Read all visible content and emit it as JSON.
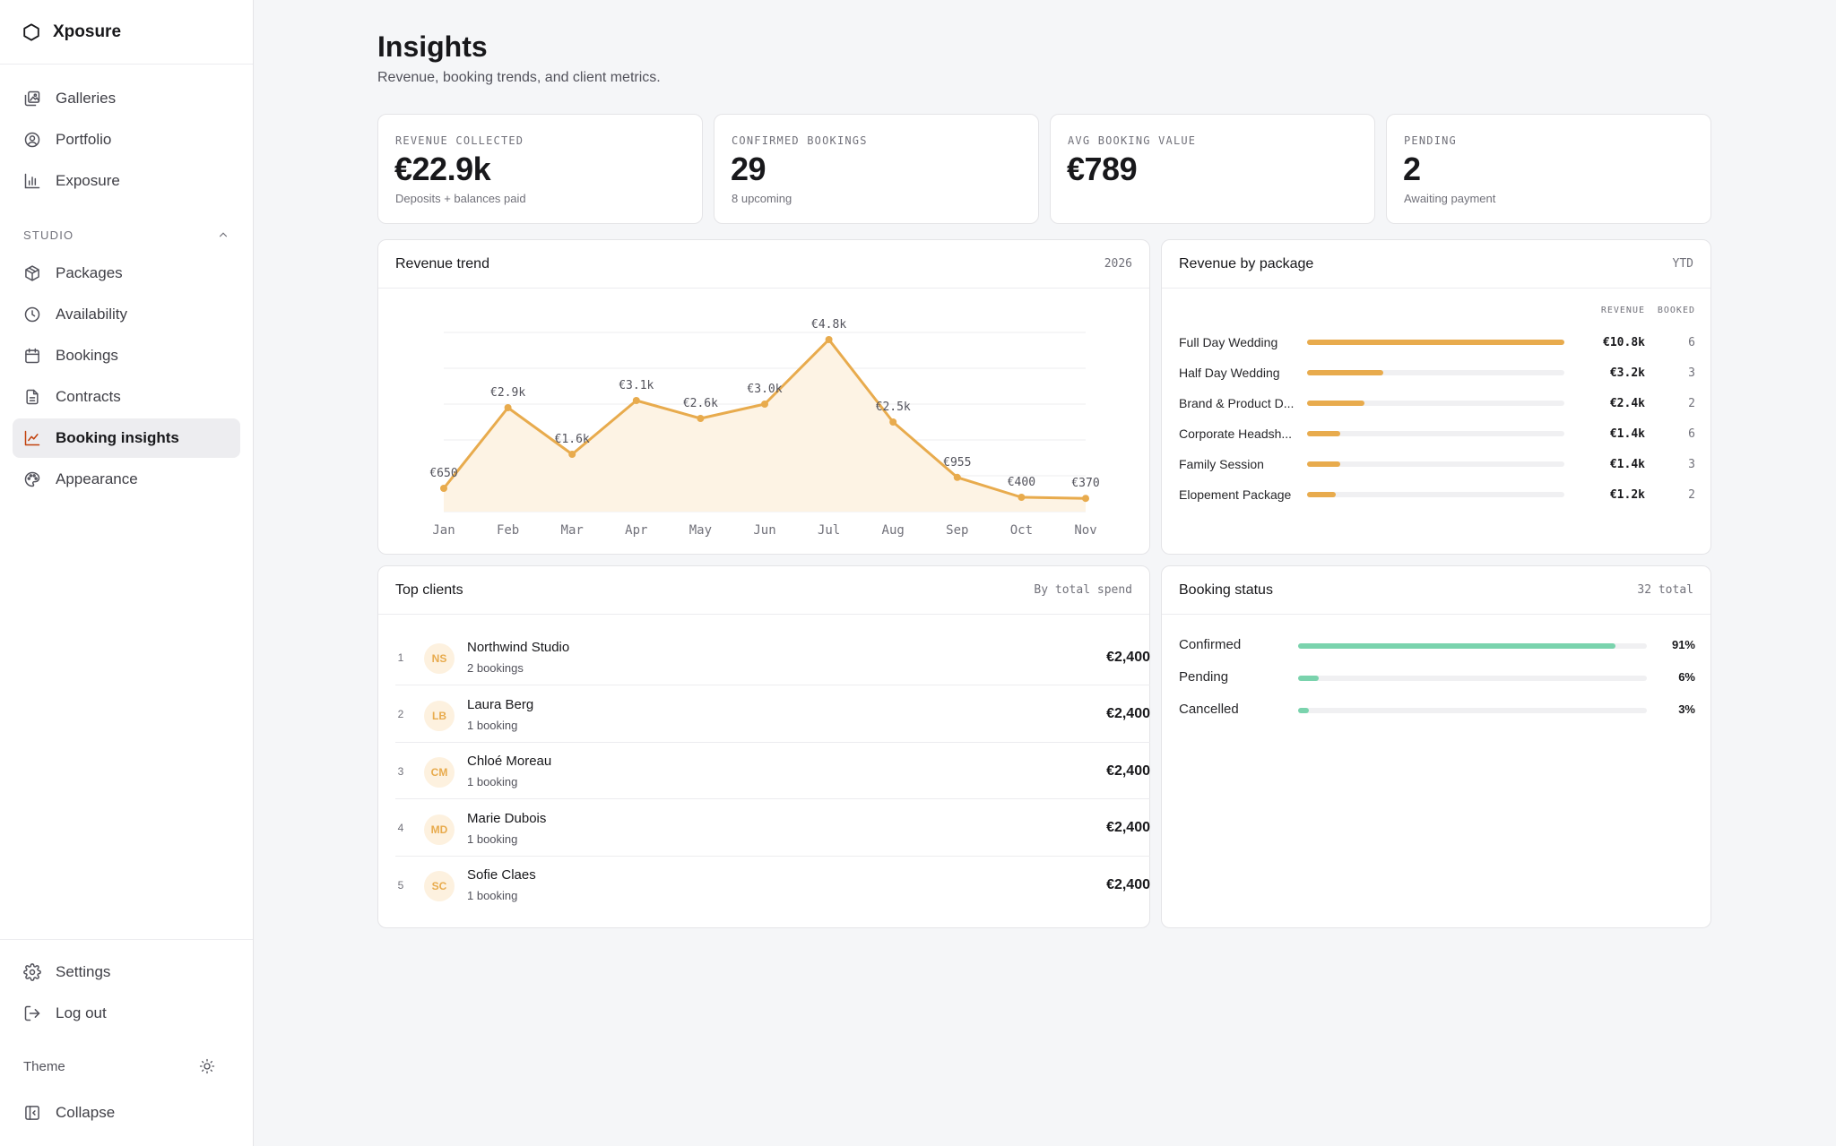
{
  "app": {
    "name": "Xposure"
  },
  "sidebar": {
    "nav": [
      {
        "label": "Galleries",
        "icon": "galleries-icon"
      },
      {
        "label": "Portfolio",
        "icon": "portfolio-icon"
      },
      {
        "label": "Exposure",
        "icon": "exposure-icon"
      }
    ],
    "section": {
      "label": "STUDIO",
      "state": "expanded"
    },
    "studio": [
      {
        "label": "Packages",
        "icon": "package-icon"
      },
      {
        "label": "Availability",
        "icon": "clock-icon"
      },
      {
        "label": "Bookings",
        "icon": "calendar-icon"
      },
      {
        "label": "Contracts",
        "icon": "document-icon"
      },
      {
        "label": "Booking insights",
        "icon": "chart-line-icon",
        "active": true
      },
      {
        "label": "Appearance",
        "icon": "palette-icon"
      }
    ],
    "footer": {
      "settings": "Settings",
      "logout": "Log out",
      "theme": "Theme",
      "collapse": "Collapse"
    }
  },
  "header": {
    "title": "Insights",
    "subtitle": "Revenue, booking trends, and client metrics."
  },
  "stats": [
    {
      "label": "REVENUE COLLECTED",
      "value": "€22.9k",
      "sub": "Deposits + balances paid"
    },
    {
      "label": "CONFIRMED BOOKINGS",
      "value": "29",
      "sub": "8 upcoming"
    },
    {
      "label": "AVG BOOKING VALUE",
      "value": "€789",
      "sub": ""
    },
    {
      "label": "PENDING",
      "value": "2",
      "sub": "Awaiting payment"
    }
  ],
  "revenue_trend": {
    "title": "Revenue trend",
    "meta": "2026"
  },
  "chart_data": {
    "type": "area",
    "title": "Revenue trend",
    "categories": [
      "Jan",
      "Feb",
      "Mar",
      "Apr",
      "May",
      "Jun",
      "Jul",
      "Aug",
      "Sep",
      "Oct",
      "Nov"
    ],
    "values": [
      650,
      2900,
      1600,
      3100,
      2600,
      3000,
      4800,
      2500,
      955,
      400,
      370
    ],
    "labels": [
      "€650",
      "€2.9k",
      "€1.6k",
      "€3.1k",
      "€2.6k",
      "€3.0k",
      "€4.8k",
      "€2.5k",
      "€955",
      "€400",
      "€370"
    ],
    "ylim": [
      0,
      5000
    ],
    "grid": true,
    "colors": {
      "line": "#e8ab4d",
      "fill": "#fdf3e4"
    }
  },
  "revenue_by_package": {
    "title": "Revenue by package",
    "meta": "YTD",
    "col_revenue": "REVENUE",
    "col_booked": "BOOKED",
    "rows": [
      {
        "name": "Full Day Wedding",
        "revenue": "€10.8k",
        "booked": "6",
        "share": 1.0
      },
      {
        "name": "Half Day Wedding",
        "revenue": "€3.2k",
        "booked": "3",
        "share": 0.296
      },
      {
        "name": "Brand & Product D...",
        "revenue": "€2.4k",
        "booked": "2",
        "share": 0.222
      },
      {
        "name": "Corporate Headsh...",
        "revenue": "€1.4k",
        "booked": "6",
        "share": 0.13
      },
      {
        "name": "Family Session",
        "revenue": "€1.4k",
        "booked": "3",
        "share": 0.13
      },
      {
        "name": "Elopement Package",
        "revenue": "€1.2k",
        "booked": "2",
        "share": 0.111
      }
    ]
  },
  "top_clients": {
    "title": "Top clients",
    "meta": "By total spend",
    "rows": [
      {
        "rank": "1",
        "initials": "NS",
        "name": "Northwind Studio",
        "sub": "2 bookings",
        "amount": "€2,400"
      },
      {
        "rank": "2",
        "initials": "LB",
        "name": "Laura Berg",
        "sub": "1 booking",
        "amount": "€2,400"
      },
      {
        "rank": "3",
        "initials": "CM",
        "name": "Chloé Moreau",
        "sub": "1 booking",
        "amount": "€2,400"
      },
      {
        "rank": "4",
        "initials": "MD",
        "name": "Marie Dubois",
        "sub": "1 booking",
        "amount": "€2,400"
      },
      {
        "rank": "5",
        "initials": "SC",
        "name": "Sofie Claes",
        "sub": "1 booking",
        "amount": "€2,400"
      }
    ]
  },
  "booking_status": {
    "title": "Booking status",
    "meta": "32 total",
    "rows": [
      {
        "label": "Confirmed",
        "pct": "91%",
        "fraction": 0.91
      },
      {
        "label": "Pending",
        "pct": "6%",
        "fraction": 0.06
      },
      {
        "label": "Cancelled",
        "pct": "3%",
        "fraction": 0.03
      }
    ],
    "color": "#7ad3ad"
  }
}
